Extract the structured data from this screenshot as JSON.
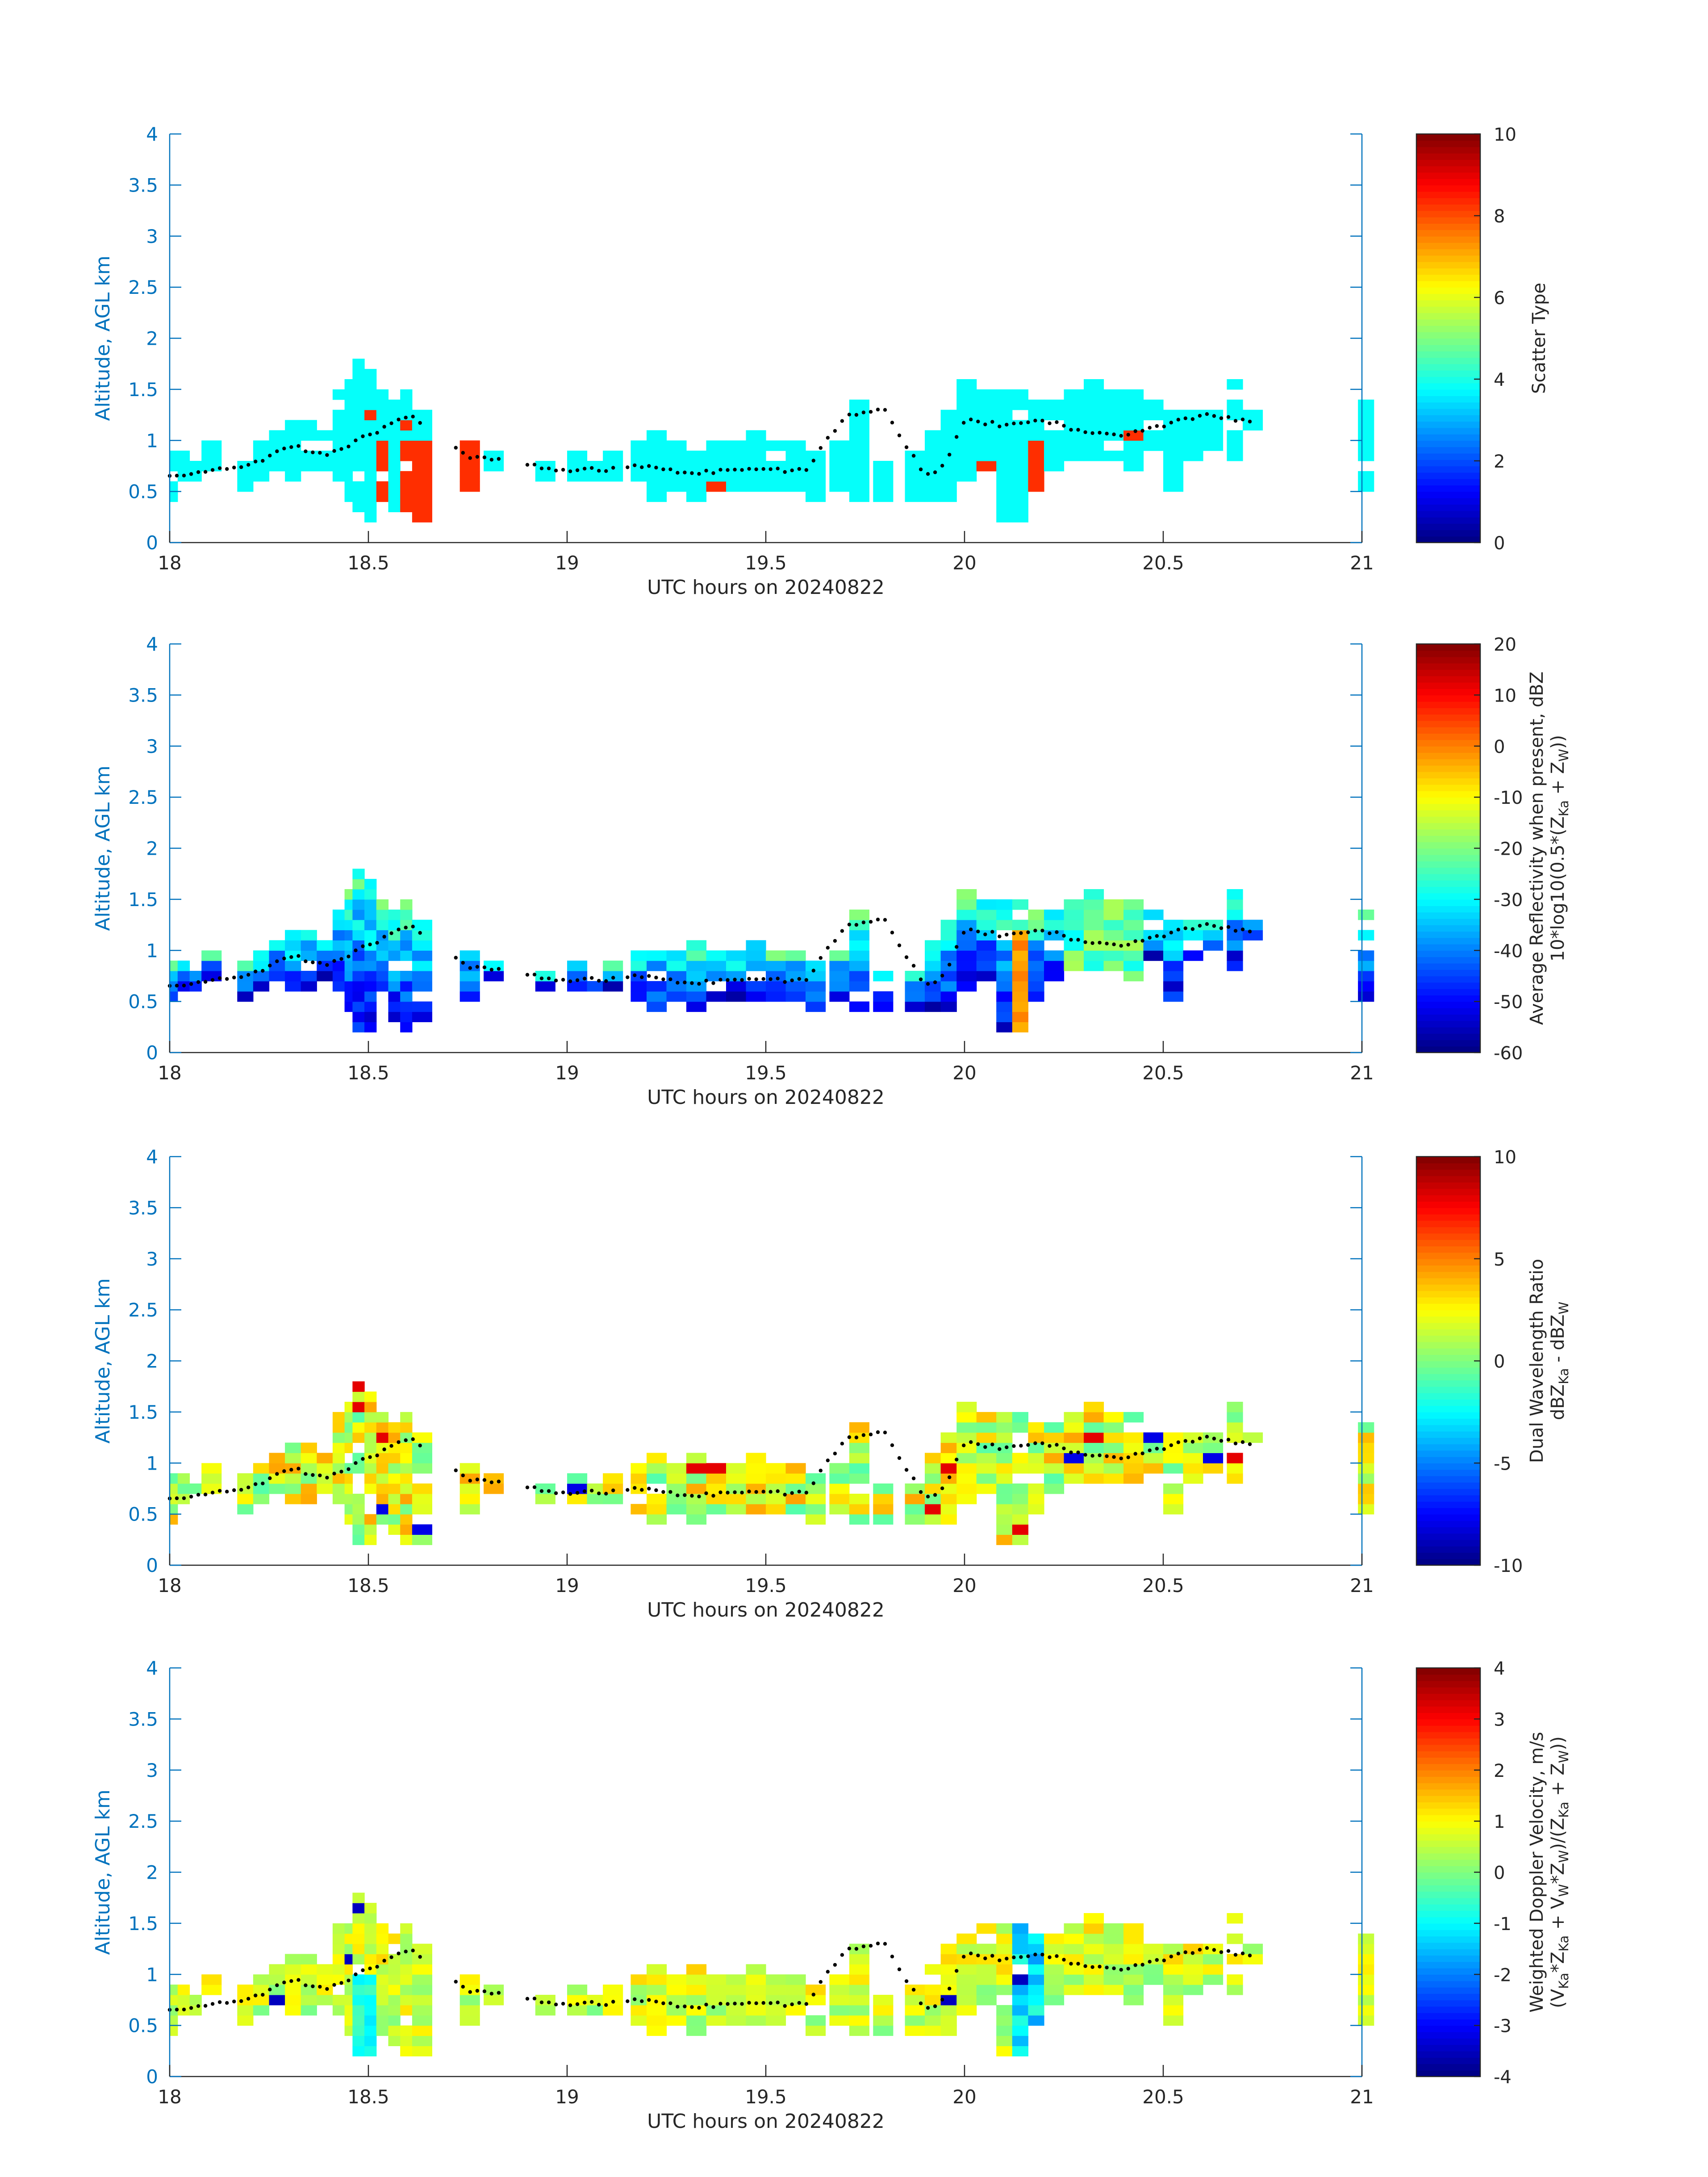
{
  "chart_data": [
    {
      "type": "heatmap",
      "name": "scatter-type",
      "ylabel": "Altitude, AGL km",
      "xlabel": "UTC hours on 20240822",
      "xlim": [
        18,
        21
      ],
      "ylim": [
        0,
        4
      ],
      "xticks": [
        "18",
        "18.5",
        "19",
        "19.5",
        "20",
        "20.5",
        "21"
      ],
      "yticks": [
        "0",
        "0.5",
        "1",
        "1.5",
        "2",
        "2.5",
        "3",
        "3.5",
        "4"
      ],
      "colorbar": {
        "label_lines": [
          "Scatter Type"
        ],
        "min": 0,
        "max": 10,
        "ticks": [
          "0",
          "2",
          "4",
          "6",
          "8",
          "10"
        ]
      },
      "base_value": 3.8,
      "alt_value": 8.3
    },
    {
      "type": "heatmap",
      "name": "reflectivity",
      "ylabel": "Altitude, AGL km",
      "xlabel": "UTC hours on 20240822",
      "xlim": [
        18,
        21
      ],
      "ylim": [
        0,
        4
      ],
      "xticks": [
        "18",
        "18.5",
        "19",
        "19.5",
        "20",
        "20.5",
        "21"
      ],
      "yticks": [
        "0",
        "0.5",
        "1",
        "1.5",
        "2",
        "2.5",
        "3",
        "3.5",
        "4"
      ],
      "colorbar": {
        "label_lines": [
          "Average Reflectivity when present, dBZ",
          "10*log10(0.5*(Z",
          "Ka",
          " + Z",
          "W",
          "))"
        ],
        "min": -60,
        "max": 20,
        "ticks": [
          "-60",
          "-50",
          "-40",
          "-30",
          "-20",
          "-10",
          "0",
          "10",
          "20"
        ]
      }
    },
    {
      "type": "heatmap",
      "name": "dual-wavelength-ratio",
      "ylabel": "Altitude, AGL km",
      "xlabel": "UTC hours on 20240822",
      "xlim": [
        18,
        21
      ],
      "ylim": [
        0,
        4
      ],
      "xticks": [
        "18",
        "18.5",
        "19",
        "19.5",
        "20",
        "20.5",
        "21"
      ],
      "yticks": [
        "0",
        "0.5",
        "1",
        "1.5",
        "2",
        "2.5",
        "3",
        "3.5",
        "4"
      ],
      "colorbar": {
        "label_lines": [
          "Dual Wavelength Ratio",
          "dBZ",
          "Ka",
          " - dBZ",
          "W"
        ],
        "min": -10,
        "max": 10,
        "ticks": [
          "-10",
          "-5",
          "0",
          "5",
          "10"
        ]
      }
    },
    {
      "type": "heatmap",
      "name": "doppler-velocity",
      "ylabel": "Altitude, AGL km",
      "xlabel": "UTC hours on 20240822",
      "xlim": [
        18,
        21
      ],
      "ylim": [
        0,
        4
      ],
      "xticks": [
        "18",
        "18.5",
        "19",
        "19.5",
        "20",
        "20.5",
        "21"
      ],
      "yticks": [
        "0",
        "0.5",
        "1",
        "1.5",
        "2",
        "2.5",
        "3",
        "3.5",
        "4"
      ],
      "colorbar": {
        "label_lines": [
          "Weighted Doppler Velocity, m/s",
          "(V",
          "Ka",
          "*Z",
          "Ka",
          " + V",
          "W",
          "*Z",
          "W",
          ")/(Z",
          "Ka",
          " + Z",
          "W",
          "))"
        ],
        "min": -4,
        "max": 4,
        "ticks": [
          "-4",
          "-3",
          "-2",
          "-1",
          "0",
          "1",
          "2",
          "3",
          "4"
        ]
      }
    }
  ],
  "cloud_columns": [
    [
      18.0,
      0.4,
      0.9
    ],
    [
      18.02,
      0.6,
      0.85
    ],
    [
      18.05,
      0.6,
      0.8
    ],
    [
      18.08,
      0.7,
      0.95
    ],
    [
      18.17,
      0.5,
      0.85
    ],
    [
      18.21,
      0.6,
      1.0
    ],
    [
      18.25,
      0.7,
      1.1
    ],
    [
      18.29,
      0.6,
      1.2
    ],
    [
      18.33,
      0.6,
      1.2
    ],
    [
      18.37,
      0.7,
      1.1
    ],
    [
      18.41,
      0.6,
      1.45
    ],
    [
      18.44,
      0.4,
      1.6
    ],
    [
      18.46,
      0.2,
      1.8
    ],
    [
      18.49,
      0.2,
      1.7
    ],
    [
      18.52,
      0.4,
      1.45
    ],
    [
      18.55,
      0.3,
      1.4
    ],
    [
      18.58,
      0.2,
      1.5
    ],
    [
      18.61,
      0.2,
      1.3
    ],
    [
      18.73,
      0.5,
      1.0
    ],
    [
      18.79,
      0.7,
      0.9
    ],
    [
      18.92,
      0.6,
      0.75
    ],
    [
      19.0,
      0.6,
      0.85
    ],
    [
      19.05,
      0.6,
      0.8
    ],
    [
      19.09,
      0.6,
      0.85
    ],
    [
      19.16,
      0.5,
      1.0
    ],
    [
      19.2,
      0.4,
      1.05
    ],
    [
      19.25,
      0.5,
      1.0
    ],
    [
      19.3,
      0.4,
      1.05
    ],
    [
      19.35,
      0.5,
      1.0
    ],
    [
      19.4,
      0.5,
      1.0
    ],
    [
      19.45,
      0.5,
      1.1
    ],
    [
      19.5,
      0.5,
      0.95
    ],
    [
      19.55,
      0.5,
      0.95
    ],
    [
      19.6,
      0.4,
      0.9
    ],
    [
      19.66,
      0.5,
      1.0
    ],
    [
      19.71,
      0.4,
      1.4
    ],
    [
      19.77,
      0.4,
      0.8
    ],
    [
      19.85,
      0.4,
      0.85
    ],
    [
      19.9,
      0.4,
      1.1
    ],
    [
      19.94,
      0.4,
      1.3
    ],
    [
      19.98,
      0.6,
      1.55
    ],
    [
      20.03,
      0.7,
      1.5
    ],
    [
      20.08,
      0.2,
      1.5
    ],
    [
      20.12,
      0.2,
      1.45
    ],
    [
      20.16,
      0.5,
      1.35
    ],
    [
      20.2,
      0.7,
      1.4
    ],
    [
      20.25,
      0.8,
      1.5
    ],
    [
      20.3,
      0.8,
      1.55
    ],
    [
      20.35,
      0.8,
      1.5
    ],
    [
      20.4,
      0.7,
      1.45
    ],
    [
      20.45,
      0.9,
      1.35
    ],
    [
      20.5,
      0.5,
      1.3
    ],
    [
      20.55,
      0.8,
      1.25
    ],
    [
      20.6,
      0.9,
      1.3
    ],
    [
      20.66,
      0.8,
      1.6
    ],
    [
      20.7,
      1.1,
      1.3
    ],
    [
      20.99,
      0.5,
      1.4
    ]
  ],
  "top_marker_curve": [
    [
      18.0,
      0.65
    ],
    [
      18.2,
      0.75
    ],
    [
      18.3,
      0.95
    ],
    [
      18.4,
      0.85
    ],
    [
      18.5,
      1.05
    ],
    [
      18.6,
      1.25
    ],
    [
      18.75,
      0.85
    ],
    [
      19.0,
      0.7
    ],
    [
      19.1,
      0.72
    ],
    [
      19.2,
      0.75
    ],
    [
      19.3,
      0.68
    ],
    [
      19.4,
      0.7
    ],
    [
      19.5,
      0.72
    ],
    [
      19.6,
      0.7
    ],
    [
      19.7,
      1.25
    ],
    [
      19.8,
      1.3
    ],
    [
      19.9,
      0.65
    ],
    [
      19.95,
      0.75
    ],
    [
      20.0,
      1.2
    ],
    [
      20.1,
      1.15
    ],
    [
      20.2,
      1.2
    ],
    [
      20.3,
      1.08
    ],
    [
      20.4,
      1.05
    ],
    [
      20.5,
      1.15
    ],
    [
      20.6,
      1.25
    ],
    [
      20.7,
      1.2
    ]
  ]
}
